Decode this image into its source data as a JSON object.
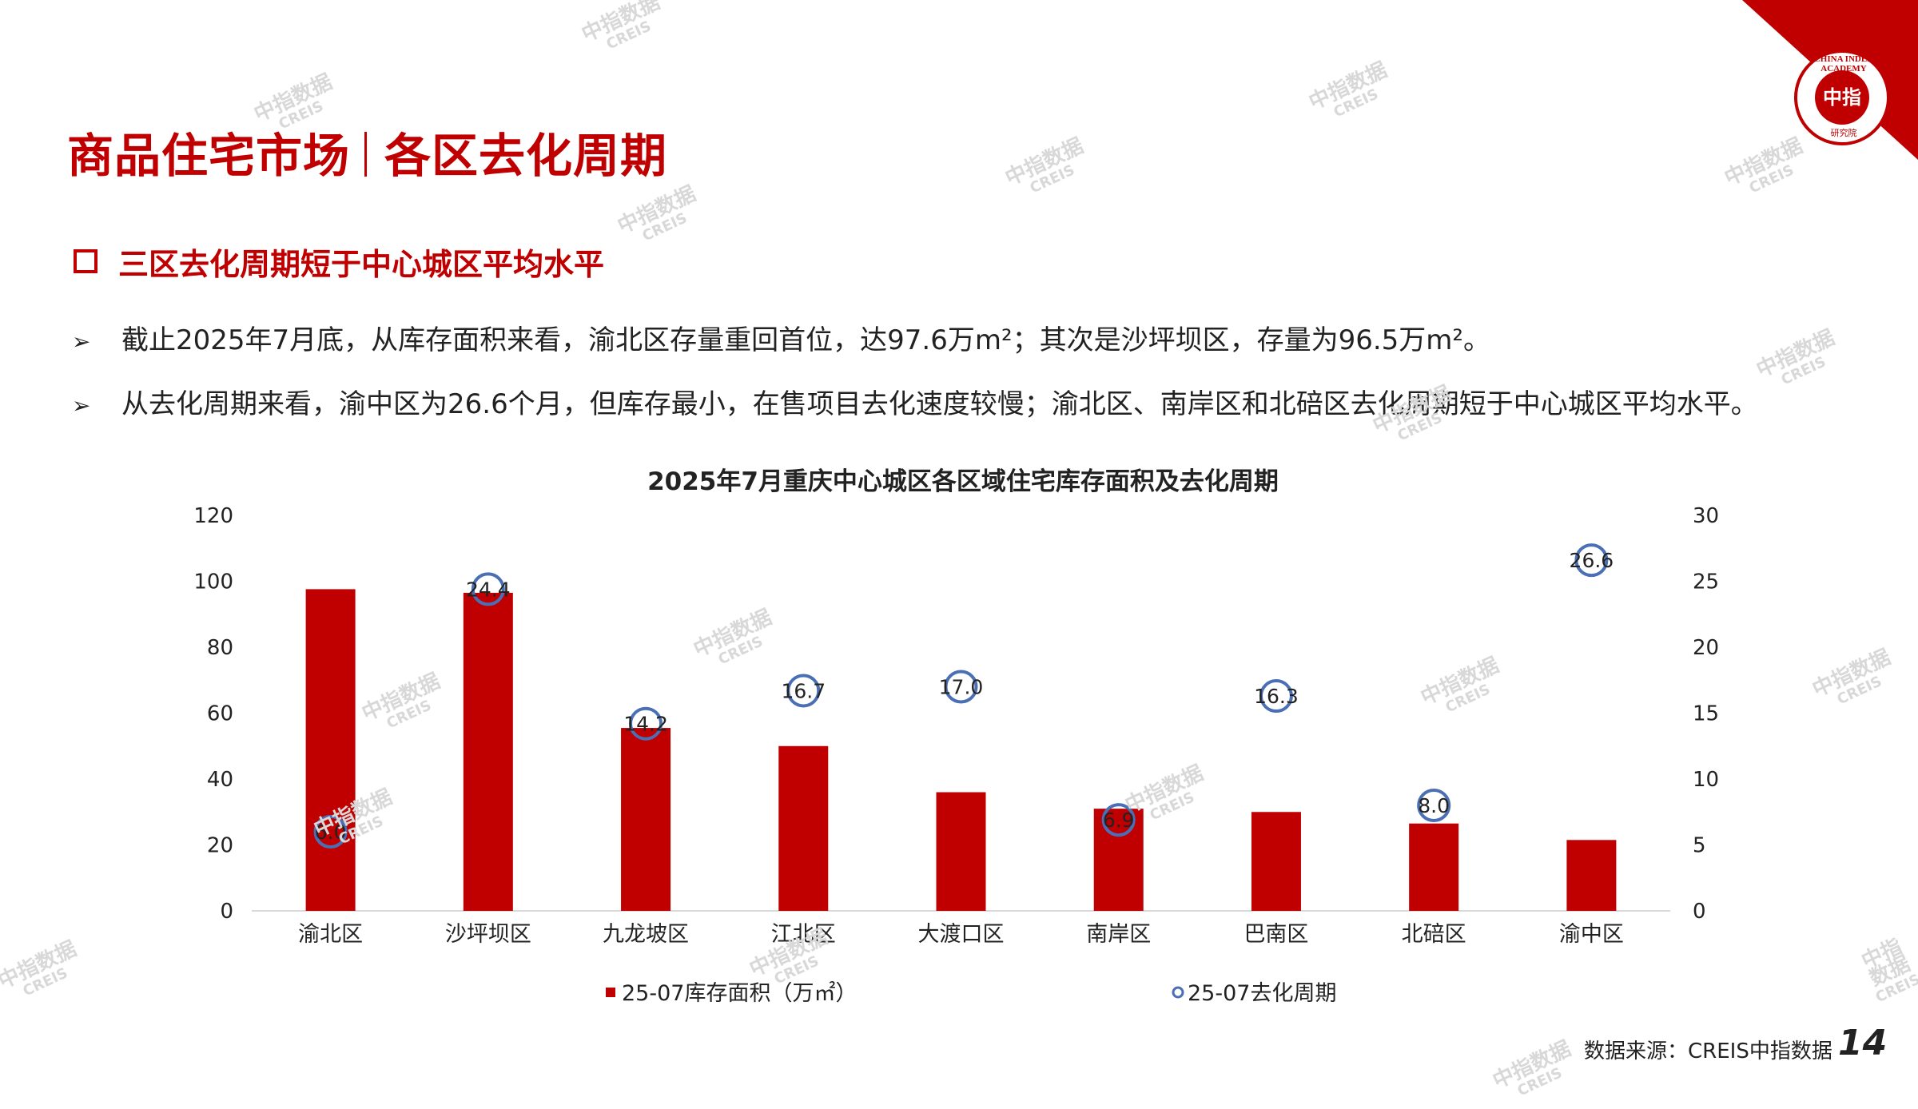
{
  "header": {
    "title_left": "商品住宅市场",
    "title_right": "各区去化周期",
    "subheading": "三区去化周期短于中心城区平均水平"
  },
  "bullets": [
    "截止2025年7月底，从库存面积来看，渝北区存量重回首位，达97.6万m²；其次是沙坪坝区，存量为96.5万m²。",
    "从去化周期来看，渝中区为26.6个月，但库存最小，在售项目去化速度较慢；渝北区、南岸区和北碚区去化周期短于中心城区平均水平。"
  ],
  "watermark": {
    "cn": "中指数据",
    "en": "CREIS"
  },
  "logo": {
    "center": "中指",
    "ring": "CHINA INDEX ACADEMY",
    "bottom": "研究院"
  },
  "footer": {
    "source": "数据来源：CREIS中指数据",
    "page": "14"
  },
  "colors": {
    "brand": "#c00000",
    "bar": "#c00000",
    "marker": "#4a6fb5",
    "axis": "#d9d9d9"
  },
  "chart_data": {
    "type": "bar",
    "title": "2025年7月重庆中心城区各区域住宅库存面积及去化周期",
    "categories": [
      "渝北区",
      "沙坪坝区",
      "九龙坡区",
      "江北区",
      "大渡口区",
      "南岸区",
      "巴南区",
      "北碚区",
      "渝中区"
    ],
    "series": [
      {
        "name": "25-07库存面积（万㎡）",
        "axis": "left",
        "type": "bar",
        "values": [
          97.6,
          96.5,
          55.5,
          50.0,
          36.0,
          31.0,
          30.0,
          26.5,
          21.5
        ]
      },
      {
        "name": "25-07去化周期",
        "axis": "right",
        "type": "scatter",
        "values": [
          6.0,
          24.4,
          14.2,
          16.7,
          17.0,
          6.9,
          16.3,
          8.0,
          26.6
        ],
        "labels": [
          "6.0",
          "24.4",
          "14.2",
          "16.7",
          "17.0",
          "6.9",
          "16.3",
          "8.0",
          "26.6"
        ]
      }
    ],
    "ylim_left": [
      0,
      120
    ],
    "yticks_left": [
      "0",
      "20",
      "40",
      "60",
      "80",
      "100",
      "120"
    ],
    "ylim_right": [
      0,
      30
    ],
    "yticks_right": [
      "0",
      "5",
      "10",
      "15",
      "20",
      "25",
      "30"
    ],
    "legend_position": "bottom",
    "grid": false
  }
}
